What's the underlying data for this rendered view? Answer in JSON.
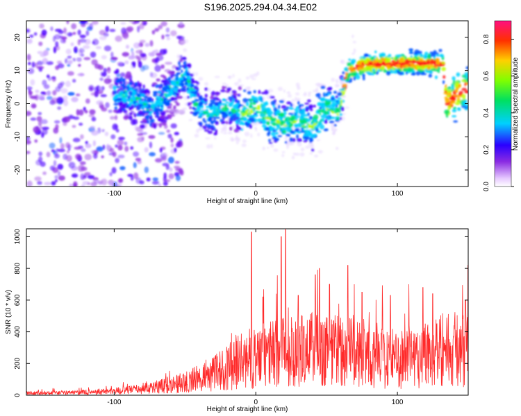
{
  "title": "S196.2025.294.04.34.E02",
  "colors": {
    "snr_line": "#ff2a2a",
    "axis": "#000000"
  },
  "chart_data": [
    {
      "type": "heatmap",
      "xlabel": "Height of straight line (km)",
      "ylabel": "Frequency (Hz)",
      "xlim": [
        -162,
        150
      ],
      "ylim": [
        -25,
        25
      ],
      "xticks": [
        -100,
        0,
        100
      ],
      "xtick_labels": [
        "-100",
        "0",
        "100"
      ],
      "yticks": [
        -20,
        -10,
        0,
        10,
        20
      ],
      "ytick_labels": [
        "-20",
        "-10",
        "0",
        "10",
        "20"
      ],
      "grid": false,
      "colorbar": {
        "label": "Normalized spectral amplitude",
        "range": [
          0,
          0.9
        ],
        "ticks": [
          0,
          0.2,
          0.4,
          0.6,
          0.8
        ],
        "tick_labels": [
          "0.0",
          "0.2",
          "0.4",
          "0.6",
          "0.8"
        ],
        "colormap": "rainbow"
      },
      "ridge": [
        {
          "x": -95,
          "y": 3
        },
        {
          "x": -85,
          "y": 2
        },
        {
          "x": -75,
          "y": -2
        },
        {
          "x": -65,
          "y": 2
        },
        {
          "x": -50,
          "y": 9
        },
        {
          "x": -40,
          "y": -2
        },
        {
          "x": -30,
          "y": -3
        },
        {
          "x": -20,
          "y": -1
        },
        {
          "x": -10,
          "y": -3
        },
        {
          "x": 0,
          "y": -1
        },
        {
          "x": 10,
          "y": -5
        },
        {
          "x": 20,
          "y": -6
        },
        {
          "x": 30,
          "y": -5
        },
        {
          "x": 40,
          "y": -7
        },
        {
          "x": 50,
          "y": -1
        },
        {
          "x": 58,
          "y": -3
        },
        {
          "x": 65,
          "y": 10
        },
        {
          "x": 80,
          "y": 12
        },
        {
          "x": 100,
          "y": 12
        },
        {
          "x": 120,
          "y": 12
        },
        {
          "x": 132,
          "y": 12
        },
        {
          "x": 135,
          "y": 0
        },
        {
          "x": 145,
          "y": 4
        }
      ]
    },
    {
      "type": "line",
      "xlabel": "Height of straight line (km)",
      "ylabel": "SNR (10 * v/v)",
      "xlim": [
        -162,
        150
      ],
      "ylim": [
        0,
        1050
      ],
      "xticks": [
        -100,
        0,
        100
      ],
      "xtick_labels": [
        "-100",
        "0",
        "100"
      ],
      "yticks": [
        0,
        200,
        400,
        600,
        800,
        1000
      ],
      "ytick_labels": [
        "0",
        "200",
        "400",
        "600",
        "800",
        "1000"
      ],
      "grid": false,
      "envelope": [
        {
          "x": -162,
          "y": 15
        },
        {
          "x": -120,
          "y": 20
        },
        {
          "x": -90,
          "y": 35
        },
        {
          "x": -70,
          "y": 60
        },
        {
          "x": -50,
          "y": 90
        },
        {
          "x": -30,
          "y": 150
        },
        {
          "x": -15,
          "y": 220
        },
        {
          "x": 0,
          "y": 270
        },
        {
          "x": 20,
          "y": 310
        },
        {
          "x": 40,
          "y": 330
        },
        {
          "x": 60,
          "y": 320
        },
        {
          "x": 80,
          "y": 290
        },
        {
          "x": 100,
          "y": 250
        },
        {
          "x": 115,
          "y": 280
        },
        {
          "x": 130,
          "y": 330
        },
        {
          "x": 150,
          "y": 310
        }
      ],
      "peaks": [
        {
          "x": -3,
          "y": 1030
        },
        {
          "x": 18,
          "y": 1000
        },
        {
          "x": 21,
          "y": 1045
        },
        {
          "x": 45,
          "y": 800
        },
        {
          "x": 42,
          "y": 760
        },
        {
          "x": 65,
          "y": 820
        },
        {
          "x": 52,
          "y": 700
        },
        {
          "x": 75,
          "y": 650
        },
        {
          "x": 95,
          "y": 630
        },
        {
          "x": 118,
          "y": 680
        },
        {
          "x": 125,
          "y": 640
        },
        {
          "x": 150,
          "y": 820
        },
        {
          "x": 5,
          "y": 620
        },
        {
          "x": 30,
          "y": 630
        },
        {
          "x": 148,
          "y": 600
        },
        {
          "x": 138,
          "y": 70
        }
      ]
    }
  ]
}
